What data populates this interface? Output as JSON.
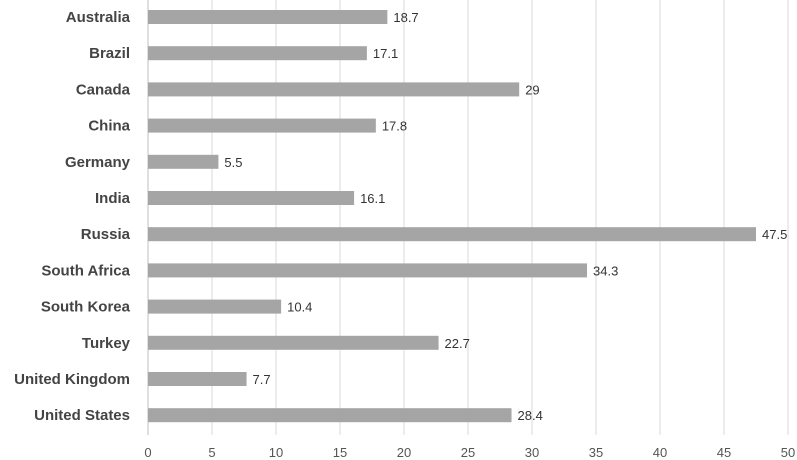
{
  "chart_data": {
    "type": "bar",
    "orientation": "horizontal",
    "title": "",
    "xlabel": "",
    "ylabel": "",
    "categories": [
      "Australia",
      "Brazil",
      "Canada",
      "China",
      "Germany",
      "India",
      "Russia",
      "South Africa",
      "South Korea",
      "Turkey",
      "United Kingdom",
      "United States"
    ],
    "values": [
      18.7,
      17.1,
      29,
      17.8,
      5.5,
      16.1,
      47.5,
      34.3,
      10.4,
      22.7,
      7.7,
      28.4
    ],
    "value_labels": [
      "18.7",
      "17.1",
      "29",
      "17.8",
      "5.5",
      "16.1",
      "47.5",
      "34.3",
      "10.4",
      "22.7",
      "7.7",
      "28.4"
    ],
    "xlim": [
      0,
      50
    ],
    "xticks": [
      0,
      5,
      10,
      15,
      20,
      25,
      30,
      35,
      40,
      45,
      50
    ],
    "xtick_labels": [
      "0",
      "5",
      "10",
      "15",
      "20",
      "25",
      "30",
      "35",
      "40",
      "45",
      "50"
    ],
    "grid": "vertical",
    "legend": "none",
    "colors": {
      "bar": "#a5a5a5",
      "grid": "#d9d9d9"
    }
  }
}
